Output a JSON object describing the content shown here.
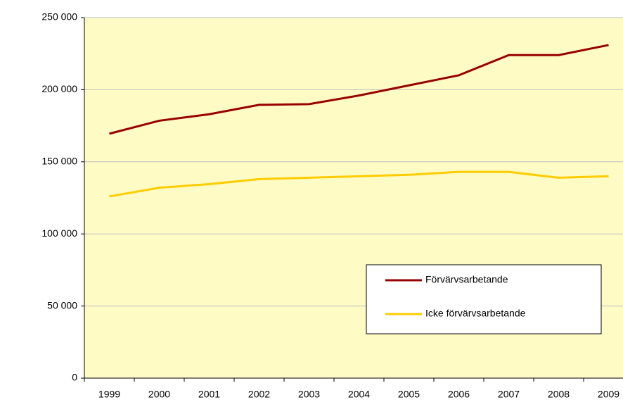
{
  "chart_data": {
    "type": "line",
    "categories": [
      "1999",
      "2000",
      "2001",
      "2002",
      "2003",
      "2004",
      "2005",
      "2006",
      "2007",
      "2008",
      "2009"
    ],
    "series": [
      {
        "name": "Förvärvsarbetande",
        "color": "#990000",
        "values": [
          169500,
          178500,
          183000,
          189500,
          190000,
          196000,
          203000,
          210000,
          224000,
          224000,
          231000
        ]
      },
      {
        "name": "Icke förvärvsarbetande",
        "color": "#ffcc00",
        "values": [
          126000,
          132000,
          134500,
          138000,
          139000,
          140000,
          141000,
          143000,
          143000,
          139000,
          140000
        ]
      }
    ],
    "ylim": [
      0,
      250000
    ],
    "yticks": [
      0,
      {
        "value": 50000,
        "label": "50 000"
      },
      {
        "value": 100000,
        "label": "100 000"
      },
      {
        "value": 150000,
        "label": "150 000"
      },
      {
        "value": 200000,
        "label": "200 000"
      },
      {
        "value": 250000,
        "label": "250 000"
      }
    ],
    "grid": true,
    "legend": "lower right",
    "background": "#fefbc4"
  }
}
